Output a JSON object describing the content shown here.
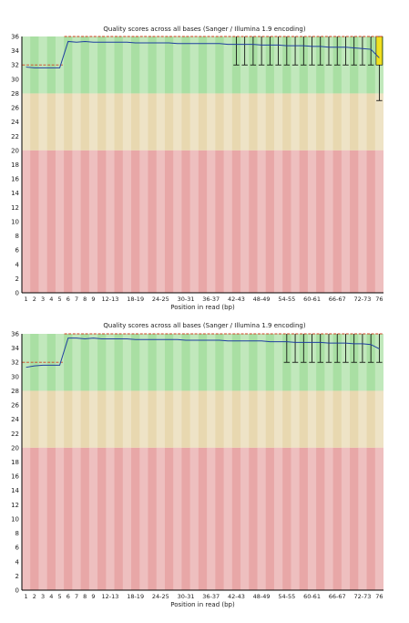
{
  "chart_data": [
    {
      "type": "box",
      "title": "Quality scores across all bases (Sanger / Illumina 1.9 encoding)",
      "xlabel": "Position in read (bp)",
      "ylabel": "",
      "ylim": [
        0,
        36
      ],
      "yticks": [
        0,
        2,
        4,
        6,
        8,
        10,
        12,
        14,
        16,
        18,
        20,
        22,
        24,
        26,
        28,
        30,
        32,
        34,
        36
      ],
      "categories": [
        "1",
        "2",
        "3",
        "4",
        "5",
        "6",
        "7",
        "8",
        "9",
        "10-11",
        "12-13",
        "14-15",
        "16-17",
        "18-19",
        "20-21",
        "22-23",
        "24-25",
        "26-27",
        "28-29",
        "30-31",
        "32-33",
        "34-35",
        "36-37",
        "38-39",
        "40-41",
        "42-43",
        "44-45",
        "46-47",
        "48-49",
        "50-51",
        "52-53",
        "54-55",
        "56-57",
        "58-59",
        "60-61",
        "62-63",
        "64-65",
        "66-67",
        "68-69",
        "70-71",
        "72-73",
        "74-75",
        "76"
      ],
      "x_tick_labels": [
        "1",
        "2",
        "3",
        "4",
        "5",
        "6",
        "7",
        "8",
        "9",
        "12-13",
        "18-19",
        "24-25",
        "30-31",
        "36-37",
        "42-43",
        "48-49",
        "54-55",
        "60-61",
        "66-67",
        "72-73",
        "76"
      ],
      "quality_zones": [
        {
          "name": "good",
          "from": 28,
          "to": 36,
          "color": "#a9dfa3"
        },
        {
          "name": "reasonable",
          "from": 20,
          "to": 28,
          "color": "#e8d8b0"
        },
        {
          "name": "poor",
          "from": 0,
          "to": 20,
          "color": "#e8a7a7"
        }
      ],
      "series": [
        {
          "values": [
            31.7,
            31.6,
            31.6,
            31.6,
            31.6,
            35.3,
            35.2,
            35.3,
            35.2,
            35.2,
            35.2,
            35.2,
            35.2,
            35.1,
            35.1,
            35.1,
            35.1,
            35.1,
            35.0,
            35.0,
            35.0,
            35.0,
            35.0,
            35.0,
            34.9,
            34.9,
            34.9,
            34.9,
            34.8,
            34.8,
            34.8,
            34.7,
            34.7,
            34.7,
            34.6,
            34.6,
            34.5,
            34.5,
            34.5,
            34.4,
            34.3,
            34.2,
            33.0
          ]
        }
      ],
      "median": [
        32,
        32,
        32,
        32,
        32,
        36,
        36,
        36,
        36,
        36,
        36,
        36,
        36,
        36,
        36,
        36,
        36,
        36,
        36,
        36,
        36,
        36,
        36,
        36,
        36,
        36,
        36,
        36,
        36,
        36,
        36,
        36,
        36,
        36,
        36,
        36,
        36,
        36,
        36,
        36,
        36,
        36,
        36
      ],
      "whisker_low": [
        32,
        32,
        32,
        32,
        32,
        36,
        36,
        36,
        36,
        36,
        36,
        36,
        36,
        36,
        36,
        36,
        36,
        36,
        36,
        36,
        36,
        36,
        36,
        36,
        36,
        32,
        32,
        32,
        32,
        32,
        32,
        32,
        32,
        32,
        32,
        32,
        32,
        32,
        32,
        32,
        32,
        32,
        27
      ],
      "box_low": [
        32,
        32,
        32,
        32,
        32,
        36,
        36,
        36,
        36,
        36,
        36,
        36,
        36,
        36,
        36,
        36,
        36,
        36,
        36,
        36,
        36,
        36,
        36,
        36,
        36,
        36,
        36,
        36,
        36,
        36,
        36,
        36,
        36,
        36,
        36,
        36,
        36,
        36,
        36,
        36,
        36,
        36,
        32
      ],
      "highlight_box_color": "#f0e020",
      "line_color": "#1f3fa0",
      "median_color": "#d04020"
    },
    {
      "type": "box",
      "title": "Quality scores across all bases (Sanger / Illumina 1.9 encoding)",
      "xlabel": "Position in read (bp)",
      "ylabel": "",
      "ylim": [
        0,
        36
      ],
      "yticks": [
        0,
        2,
        4,
        6,
        8,
        10,
        12,
        14,
        16,
        18,
        20,
        22,
        24,
        26,
        28,
        30,
        32,
        34,
        36
      ],
      "categories": [
        "1",
        "2",
        "3",
        "4",
        "5",
        "6",
        "7",
        "8",
        "9",
        "10-11",
        "12-13",
        "14-15",
        "16-17",
        "18-19",
        "20-21",
        "22-23",
        "24-25",
        "26-27",
        "28-29",
        "30-31",
        "32-33",
        "34-35",
        "36-37",
        "38-39",
        "40-41",
        "42-43",
        "44-45",
        "46-47",
        "48-49",
        "50-51",
        "52-53",
        "54-55",
        "56-57",
        "58-59",
        "60-61",
        "62-63",
        "64-65",
        "66-67",
        "68-69",
        "70-71",
        "72-73",
        "74-75",
        "76"
      ],
      "x_tick_labels": [
        "1",
        "2",
        "3",
        "4",
        "5",
        "6",
        "7",
        "8",
        "9",
        "12-13",
        "18-19",
        "24-25",
        "30-31",
        "36-37",
        "42-43",
        "48-49",
        "54-55",
        "60-61",
        "66-67",
        "72-73",
        "76"
      ],
      "quality_zones": [
        {
          "name": "good",
          "from": 28,
          "to": 36,
          "color": "#a9dfa3"
        },
        {
          "name": "reasonable",
          "from": 20,
          "to": 28,
          "color": "#e8d8b0"
        },
        {
          "name": "poor",
          "from": 0,
          "to": 20,
          "color": "#e8a7a7"
        }
      ],
      "series": [
        {
          "values": [
            31.3,
            31.5,
            31.6,
            31.6,
            31.6,
            35.4,
            35.4,
            35.3,
            35.4,
            35.3,
            35.3,
            35.3,
            35.3,
            35.2,
            35.2,
            35.2,
            35.2,
            35.2,
            35.2,
            35.1,
            35.1,
            35.1,
            35.1,
            35.1,
            35.0,
            35.0,
            35.0,
            35.0,
            35.0,
            34.9,
            34.9,
            34.9,
            34.8,
            34.8,
            34.8,
            34.8,
            34.7,
            34.7,
            34.7,
            34.6,
            34.6,
            34.5,
            33.9
          ]
        }
      ],
      "median": [
        32,
        32,
        32,
        32,
        32,
        36,
        36,
        36,
        36,
        36,
        36,
        36,
        36,
        36,
        36,
        36,
        36,
        36,
        36,
        36,
        36,
        36,
        36,
        36,
        36,
        36,
        36,
        36,
        36,
        36,
        36,
        36,
        36,
        36,
        36,
        36,
        36,
        36,
        36,
        36,
        36,
        36,
        36
      ],
      "whisker_low": [
        32,
        32,
        32,
        32,
        32,
        36,
        36,
        36,
        36,
        36,
        36,
        36,
        36,
        36,
        36,
        36,
        36,
        36,
        36,
        36,
        36,
        36,
        36,
        36,
        36,
        36,
        36,
        36,
        36,
        36,
        36,
        32,
        32,
        32,
        32,
        32,
        32,
        32,
        32,
        32,
        32,
        32,
        32
      ],
      "box_low": [
        32,
        32,
        32,
        32,
        32,
        36,
        36,
        36,
        36,
        36,
        36,
        36,
        36,
        36,
        36,
        36,
        36,
        36,
        36,
        36,
        36,
        36,
        36,
        36,
        36,
        36,
        36,
        36,
        36,
        36,
        36,
        36,
        36,
        36,
        36,
        36,
        36,
        36,
        36,
        36,
        36,
        36,
        36
      ],
      "highlight_box_color": "#f0e020",
      "line_color": "#1f3fa0",
      "median_color": "#d04020"
    }
  ]
}
